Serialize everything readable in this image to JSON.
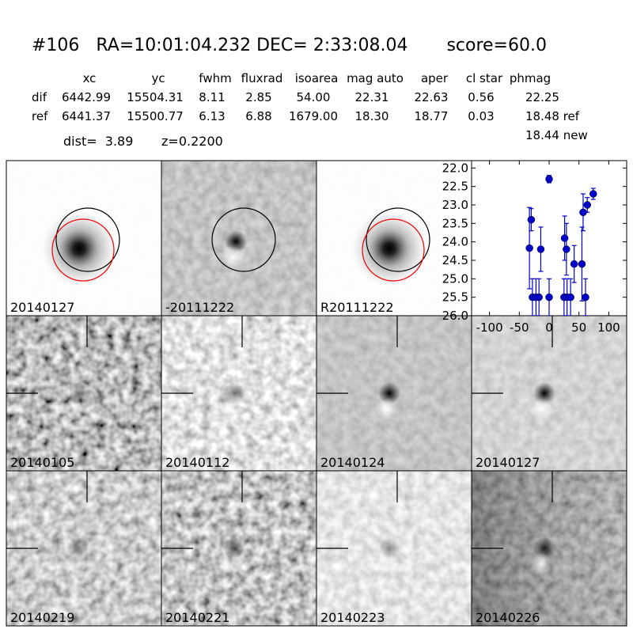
{
  "header": {
    "title": "#106   RA=10:01:04.232 DEC= 2:33:08.04       score=60.0"
  },
  "table": {
    "columns": [
      "xc",
      "yc",
      "fwhm",
      "fluxrad",
      "isoarea",
      "mag auto",
      "aper",
      "cl star",
      "phmag"
    ],
    "rows": [
      {
        "label": "dif",
        "values": [
          "6442.99",
          "15504.31",
          "8.11",
          "2.85",
          "54.00",
          "22.31",
          "22.63",
          "0.56",
          "22.25"
        ]
      },
      {
        "label": "ref",
        "values": [
          "6441.37",
          "15500.77",
          "6.13",
          "6.88",
          "1679.00",
          "18.30",
          "18.77",
          "0.03",
          "18.48 ref"
        ]
      }
    ],
    "note": "18.44 new"
  },
  "info": "dist=  3.89       z=0.2200",
  "panels": [
    {
      "label": "20140127",
      "color": "#000000"
    },
    {
      "label": "-20111222",
      "color": "#000000"
    },
    {
      "label": "R20111222",
      "color": "#000000"
    },
    {
      "label": "20140105",
      "color": "#000000"
    },
    {
      "label": "20140112",
      "color": "#000000"
    },
    {
      "label": "20140124",
      "color": "#000000"
    },
    {
      "label": "20140127",
      "color": "#ff0000"
    },
    {
      "label": "20140219",
      "color": "#000000"
    },
    {
      "label": "20140221",
      "color": "#000000"
    },
    {
      "label": "20140223",
      "color": "#000000"
    },
    {
      "label": "20140226",
      "color": "#000000"
    }
  ],
  "chart_data": {
    "type": "errorbar",
    "color": "#0000cc",
    "x": [
      -33,
      -30,
      -28,
      -22,
      -17,
      -14,
      0,
      0,
      26,
      29,
      25,
      30,
      36,
      42,
      55,
      57,
      61,
      64,
      74
    ],
    "values": [
      24.17,
      23.4,
      25.5,
      25.5,
      25.5,
      24.2,
      22.3,
      25.5,
      23.9,
      24.2,
      25.5,
      25.5,
      25.5,
      24.6,
      24.6,
      23.2,
      25.5,
      23.0,
      22.7
    ],
    "errors": [
      1.1,
      0.3,
      0.5,
      0.5,
      0.5,
      0.6,
      0.1,
      0.5,
      0.6,
      0.7,
      0.5,
      0.5,
      0.5,
      0.5,
      1.0,
      0.5,
      0.5,
      0.2,
      0.15
    ],
    "xlim": [
      -130,
      130
    ],
    "ylim": [
      26.0,
      21.8
    ],
    "xticks": [
      -100,
      -50,
      0,
      50,
      100
    ],
    "yticks": [
      {
        "value": 22,
        "label": "22.0"
      },
      {
        "value": 22.5,
        "label": "22.5"
      },
      {
        "value": 23,
        "label": "23.0"
      },
      {
        "value": 23.5,
        "label": "23.5"
      },
      {
        "value": 24,
        "label": "24.0"
      },
      {
        "value": 24.5,
        "label": "24.5"
      },
      {
        "value": 25,
        "label": "25.0"
      },
      {
        "value": 25.5,
        "label": "25.5"
      },
      {
        "value": 26,
        "label": "26.0"
      }
    ]
  }
}
